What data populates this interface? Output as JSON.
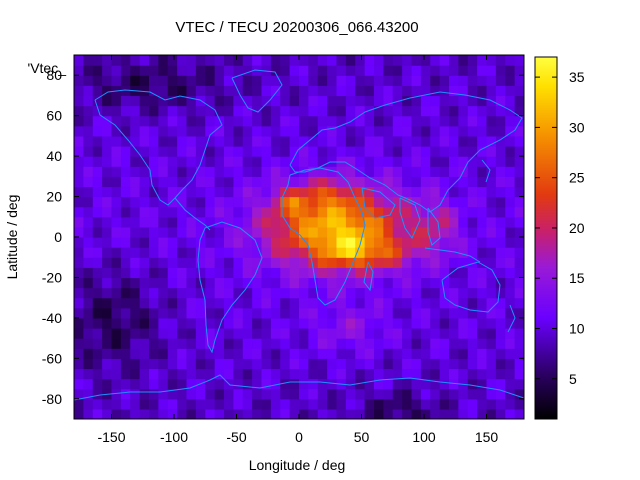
{
  "chart_data": {
    "type": "heatmap",
    "title": "VTEC / TECU 20200306_066.43200",
    "xlabel": "Longitude / deg",
    "ylabel": "Latitude / deg",
    "key_label": "'Vtec_",
    "xlim": [
      -180,
      180
    ],
    "ylim": [
      -90,
      90
    ],
    "x_ticks": [
      -150,
      -100,
      -50,
      0,
      50,
      100,
      150
    ],
    "y_ticks": [
      -80,
      -60,
      -40,
      -20,
      0,
      20,
      40,
      60,
      80
    ],
    "colorbar": {
      "min": 1,
      "max": 37,
      "ticks": [
        5,
        10,
        15,
        20,
        25,
        30,
        35
      ],
      "palette": "black-blue-purple-red-orange-yellow"
    },
    "grid": false,
    "overlay": "coastlines",
    "overlay_color": "#1e90ff",
    "field_features": [
      {
        "lon": 40,
        "lat": -7,
        "value": 35
      },
      {
        "lon": -5,
        "lat": 18,
        "value": 34
      },
      {
        "lon": 25,
        "lat": 22,
        "value": 33
      },
      {
        "lon": 70,
        "lat": -8,
        "value": 30
      },
      {
        "lon": 100,
        "lat": 15,
        "value": 22
      },
      {
        "lon": 115,
        "lat": -5,
        "value": 20
      },
      {
        "lon": 40,
        "lat": -45,
        "value": 16
      }
    ]
  }
}
